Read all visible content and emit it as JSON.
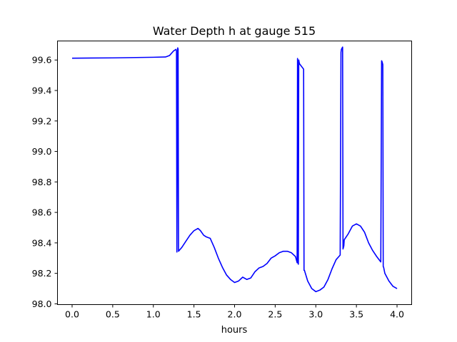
{
  "chart_data": {
    "type": "line",
    "title": "Water Depth h at gauge 515",
    "xlabel": "hours",
    "ylabel": "",
    "xlim": [
      -0.18,
      4.18
    ],
    "ylim": [
      97.995,
      99.725
    ],
    "xticks": [
      0.0,
      0.5,
      1.0,
      1.5,
      2.0,
      2.5,
      3.0,
      3.5,
      4.0
    ],
    "xtick_labels": [
      "0.0",
      "0.5",
      "1.0",
      "1.5",
      "2.0",
      "2.5",
      "3.0",
      "3.5",
      "4.0"
    ],
    "yticks": [
      98.0,
      98.2,
      98.4,
      98.6,
      98.8,
      99.0,
      99.2,
      99.4,
      99.6
    ],
    "ytick_labels": [
      "98.0",
      "98.2",
      "98.4",
      "98.6",
      "98.8",
      "99.0",
      "99.2",
      "99.4",
      "99.6"
    ],
    "grid": false,
    "series": [
      {
        "color": "#0000ff",
        "x": [
          0.0,
          0.5,
          1.0,
          1.15,
          1.2,
          1.25,
          1.28,
          1.285,
          1.29,
          1.3,
          1.305,
          1.31,
          1.35,
          1.4,
          1.45,
          1.5,
          1.55,
          1.58,
          1.62,
          1.65,
          1.7,
          1.75,
          1.8,
          1.85,
          1.9,
          1.95,
          2.0,
          2.05,
          2.1,
          2.15,
          2.2,
          2.25,
          2.3,
          2.35,
          2.4,
          2.45,
          2.5,
          2.55,
          2.6,
          2.65,
          2.7,
          2.75,
          2.77,
          2.775,
          2.78,
          2.785,
          2.79,
          2.795,
          2.8,
          2.85,
          2.855,
          2.86,
          2.9,
          2.95,
          3.0,
          3.05,
          3.1,
          3.15,
          3.2,
          3.25,
          3.3,
          3.31,
          3.315,
          3.32,
          3.33,
          3.335,
          3.34,
          3.345,
          3.35,
          3.4,
          3.45,
          3.5,
          3.55,
          3.6,
          3.65,
          3.7,
          3.75,
          3.8,
          3.81,
          3.815,
          3.82,
          3.825,
          3.83,
          3.835,
          3.85,
          3.9,
          3.95,
          4.0
        ],
        "y": [
          99.612,
          99.614,
          99.618,
          99.62,
          99.63,
          99.66,
          99.67,
          99.66,
          98.34,
          99.68,
          99.67,
          98.345,
          98.37,
          98.41,
          98.45,
          98.48,
          98.495,
          98.48,
          98.45,
          98.44,
          98.43,
          98.37,
          98.3,
          98.24,
          98.19,
          98.16,
          98.14,
          98.15,
          98.175,
          98.16,
          98.17,
          98.21,
          98.235,
          98.245,
          98.265,
          98.3,
          98.315,
          98.335,
          98.345,
          98.345,
          98.335,
          98.31,
          98.27,
          99.61,
          98.27,
          98.26,
          99.6,
          99.585,
          99.575,
          99.54,
          98.22,
          98.22,
          98.15,
          98.1,
          98.08,
          98.09,
          98.11,
          98.16,
          98.23,
          98.29,
          98.32,
          99.65,
          99.67,
          99.675,
          99.685,
          98.36,
          98.37,
          98.38,
          98.42,
          98.46,
          98.51,
          98.525,
          98.51,
          98.47,
          98.4,
          98.35,
          98.31,
          98.275,
          99.595,
          99.59,
          99.58,
          99.57,
          98.245,
          98.24,
          98.2,
          98.15,
          98.115,
          98.1
        ]
      }
    ]
  }
}
